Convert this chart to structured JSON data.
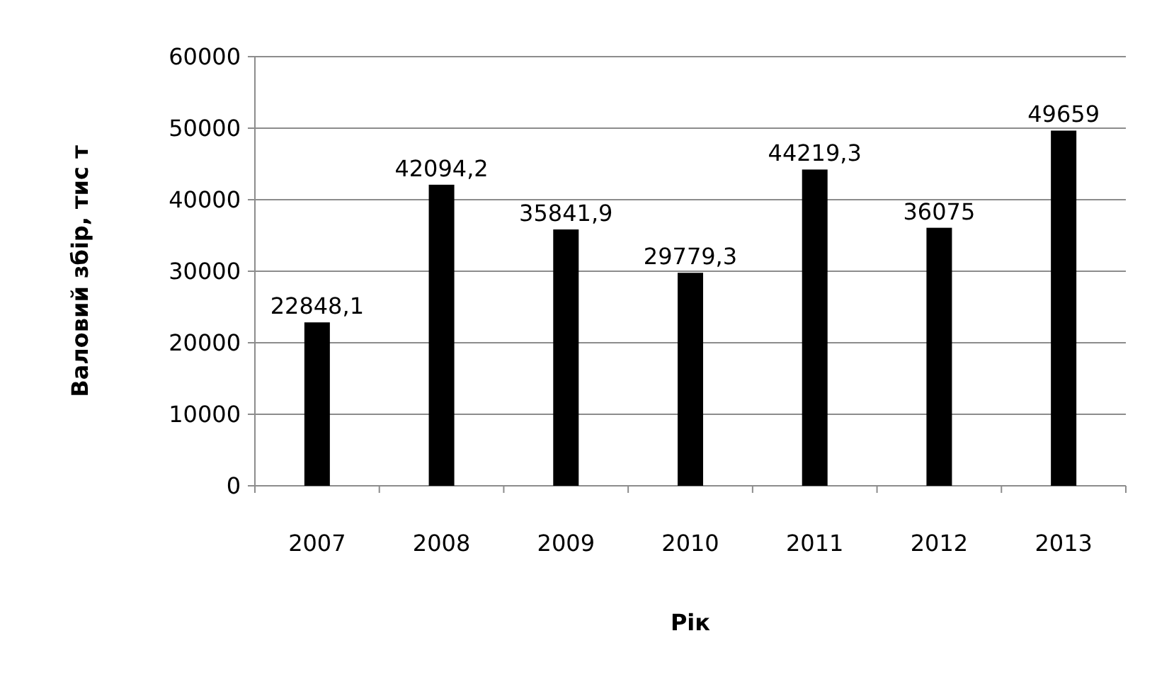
{
  "chart_data": {
    "type": "bar",
    "xlabel": "Рік",
    "ylabel": "Валовий збір, тис т",
    "categories": [
      "2007",
      "2008",
      "2009",
      "2010",
      "2011",
      "2012",
      "2013"
    ],
    "values": [
      22848.1,
      42094.2,
      35841.9,
      29779.3,
      44219.3,
      36075,
      49659
    ],
    "value_labels": [
      "22848,1",
      "42094,2",
      "35841,9",
      "29779,3",
      "44219,3",
      "36075",
      "49659"
    ],
    "color": "#000000",
    "ylim": [
      0,
      60000
    ],
    "yticks": [
      0,
      10000,
      20000,
      30000,
      40000,
      50000,
      60000
    ],
    "grid": "y"
  }
}
